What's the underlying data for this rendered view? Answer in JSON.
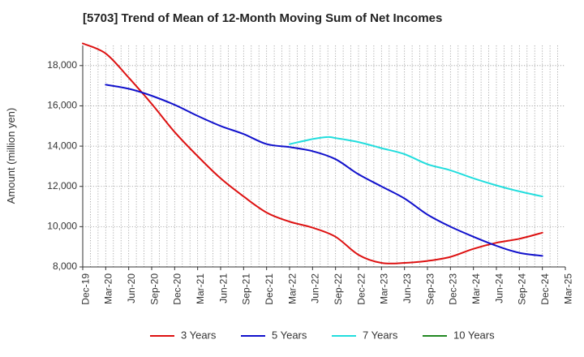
{
  "chart_data": {
    "type": "line",
    "title": "[5703]  Trend of Mean of 12-Month Moving Sum of Net Incomes",
    "ylabel": "Amount (million yen)",
    "xlabel": "",
    "ylim": [
      8000,
      19000
    ],
    "yticks": [
      8000,
      10000,
      12000,
      14000,
      16000,
      18000
    ],
    "ytick_labels": [
      "8,000",
      "10,000",
      "12,000",
      "14,000",
      "16,000",
      "18,000"
    ],
    "x_ticks": [
      "Dec-19",
      "Mar-20",
      "Jun-20",
      "Sep-20",
      "Dec-20",
      "Mar-21",
      "Jun-21",
      "Sep-21",
      "Dec-21",
      "Mar-22",
      "Jun-22",
      "Sep-22",
      "Dec-22",
      "Mar-23",
      "Jun-23",
      "Sep-23",
      "Dec-23",
      "Mar-24",
      "Jun-24",
      "Sep-24",
      "Dec-24",
      "Mar-25"
    ],
    "grid": true,
    "legend_position": "bottom",
    "series": [
      {
        "name": "3 Years",
        "color": "#dd1111",
        "points": [
          [
            "Dec-19",
            19100
          ],
          [
            "Mar-20",
            18600
          ],
          [
            "Jun-20",
            17400
          ],
          [
            "Sep-20",
            16100
          ],
          [
            "Dec-20",
            14700
          ],
          [
            "Mar-21",
            13500
          ],
          [
            "Jun-21",
            12400
          ],
          [
            "Sep-21",
            11500
          ],
          [
            "Dec-21",
            10700
          ],
          [
            "Mar-22",
            10250
          ],
          [
            "Jun-22",
            9950
          ],
          [
            "Sep-22",
            9500
          ],
          [
            "Dec-22",
            8600
          ],
          [
            "Mar-23",
            8200
          ],
          [
            "Jun-23",
            8200
          ],
          [
            "Sep-23",
            8300
          ],
          [
            "Dec-23",
            8500
          ],
          [
            "Mar-24",
            8900
          ],
          [
            "Jun-24",
            9200
          ],
          [
            "Sep-24",
            9400
          ],
          [
            "Dec-24",
            9700
          ]
        ]
      },
      {
        "name": "5 Years",
        "color": "#1111cc",
        "points": [
          [
            "Mar-20",
            17050
          ],
          [
            "Jun-20",
            16850
          ],
          [
            "Sep-20",
            16500
          ],
          [
            "Dec-20",
            16050
          ],
          [
            "Mar-21",
            15500
          ],
          [
            "Jun-21",
            15000
          ],
          [
            "Sep-21",
            14600
          ],
          [
            "Dec-21",
            14100
          ],
          [
            "Mar-22",
            13950
          ],
          [
            "Jun-22",
            13750
          ],
          [
            "Sep-22",
            13350
          ],
          [
            "Dec-22",
            12600
          ],
          [
            "Mar-23",
            12000
          ],
          [
            "Jun-23",
            11400
          ],
          [
            "Sep-23",
            10600
          ],
          [
            "Dec-23",
            10000
          ],
          [
            "Mar-24",
            9500
          ],
          [
            "Jun-24",
            9050
          ],
          [
            "Sep-24",
            8700
          ],
          [
            "Dec-24",
            8550
          ]
        ]
      },
      {
        "name": "7 Years",
        "color": "#22dddd",
        "points": [
          [
            "Mar-22",
            14100
          ],
          [
            "Jun-22",
            14350
          ],
          [
            "Aug-22",
            14450
          ],
          [
            "Sep-22",
            14400
          ],
          [
            "Dec-22",
            14200
          ],
          [
            "Mar-23",
            13900
          ],
          [
            "Jun-23",
            13600
          ],
          [
            "Sep-23",
            13100
          ],
          [
            "Dec-23",
            12800
          ],
          [
            "Mar-24",
            12400
          ],
          [
            "Jun-24",
            12050
          ],
          [
            "Sep-24",
            11750
          ],
          [
            "Dec-24",
            11500
          ]
        ]
      },
      {
        "name": "10 Years",
        "color": "#228822",
        "points": []
      }
    ]
  }
}
